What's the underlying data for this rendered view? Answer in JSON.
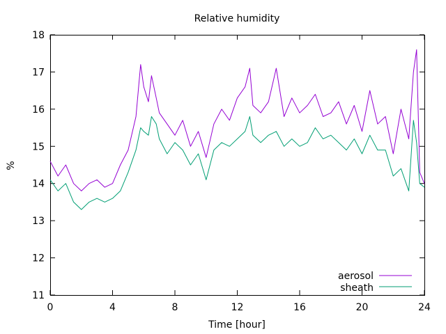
{
  "chart_data": {
    "type": "line",
    "title": "Relative humidity",
    "xlabel": "Time [hour]",
    "ylabel": "%",
    "xlim": [
      0,
      24
    ],
    "ylim": [
      11,
      18
    ],
    "x_ticks": [
      "0",
      "4",
      "8",
      "12",
      "16",
      "20",
      "24"
    ],
    "y_ticks": [
      "11",
      "12",
      "13",
      "14",
      "15",
      "16",
      "17",
      "18"
    ],
    "grid": false,
    "legend_position": "bottom-right",
    "series": [
      {
        "name": "aerosol",
        "color": "#9400d3",
        "x": [
          0,
          0.5,
          1,
          1.5,
          2,
          2.5,
          3,
          3.5,
          4,
          4.5,
          5,
          5.5,
          5.8,
          6,
          6.3,
          6.5,
          6.8,
          7,
          7.5,
          8,
          8.5,
          9,
          9.5,
          10,
          10.5,
          11,
          11.5,
          12,
          12.5,
          12.8,
          13,
          13.5,
          14,
          14.5,
          15,
          15.5,
          16,
          16.5,
          17,
          17.5,
          18,
          18.5,
          19,
          19.5,
          20,
          20.5,
          21,
          21.5,
          22,
          22.5,
          23,
          23.3,
          23.5,
          23.7,
          24
        ],
        "values": [
          14.6,
          14.2,
          14.5,
          14.0,
          13.8,
          14.0,
          14.1,
          13.9,
          14.0,
          14.5,
          14.9,
          15.8,
          17.2,
          16.6,
          16.2,
          16.9,
          16.3,
          15.9,
          15.6,
          15.3,
          15.7,
          15.0,
          15.4,
          14.7,
          15.6,
          16.0,
          15.7,
          16.3,
          16.6,
          17.1,
          16.1,
          15.9,
          16.2,
          17.1,
          15.8,
          16.3,
          15.9,
          16.1,
          16.4,
          15.8,
          15.9,
          16.2,
          15.6,
          16.1,
          15.4,
          16.5,
          15.6,
          15.8,
          14.8,
          16.0,
          15.2,
          17.0,
          17.6,
          14.3,
          14.0
        ]
      },
      {
        "name": "sheath",
        "color": "#009e73",
        "x": [
          0,
          0.5,
          1,
          1.5,
          2,
          2.5,
          3,
          3.5,
          4,
          4.5,
          5,
          5.5,
          5.8,
          6,
          6.3,
          6.5,
          6.8,
          7,
          7.5,
          8,
          8.5,
          9,
          9.5,
          10,
          10.5,
          11,
          11.5,
          12,
          12.5,
          12.8,
          13,
          13.5,
          14,
          14.5,
          15,
          15.5,
          16,
          16.5,
          17,
          17.5,
          18,
          18.5,
          19,
          19.5,
          20,
          20.5,
          21,
          21.5,
          22,
          22.5,
          23,
          23.3,
          23.5,
          23.7,
          24
        ],
        "values": [
          14.1,
          13.8,
          14.0,
          13.5,
          13.3,
          13.5,
          13.6,
          13.5,
          13.6,
          13.8,
          14.3,
          14.9,
          15.5,
          15.4,
          15.3,
          15.8,
          15.6,
          15.2,
          14.8,
          15.1,
          14.9,
          14.5,
          14.8,
          14.1,
          14.9,
          15.1,
          15.0,
          15.2,
          15.4,
          15.8,
          15.3,
          15.1,
          15.3,
          15.4,
          15.0,
          15.2,
          15.0,
          15.1,
          15.5,
          15.2,
          15.3,
          15.1,
          14.9,
          15.2,
          14.8,
          15.3,
          14.9,
          14.9,
          14.2,
          14.4,
          13.8,
          15.7,
          15.1,
          14.0,
          13.9
        ]
      }
    ]
  }
}
